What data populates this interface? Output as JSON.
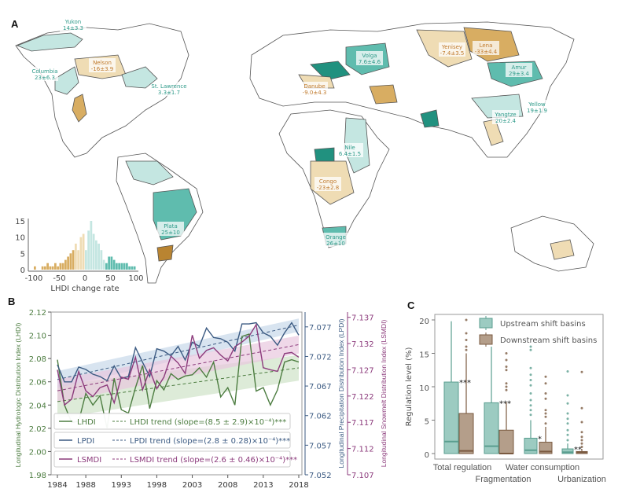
{
  "panels": {
    "a": "A",
    "b": "B",
    "c": "C"
  },
  "colors": {
    "light_teal": "#c4e6e1",
    "teal": "#5fbcae",
    "dark_teal": "#21917f",
    "light_tan": "#efdcb4",
    "tan": "#d8ad62",
    "dark_tan": "#b98431",
    "lhdi": "#4d7d41",
    "lpdi": "#3b5a82",
    "lsmdi": "#8c3b7c",
    "up_box": "#9ccbc1",
    "up_line": "#5a9e8f",
    "down_box": "#b49e8a",
    "down_line": "#7a5a40"
  },
  "map": {
    "basins": [
      {
        "name": "Yukon",
        "value": "14±3.3",
        "sign": "pos"
      },
      {
        "name": "Columbia",
        "value": "23±6.3",
        "sign": "pos"
      },
      {
        "name": "Nelson",
        "value": "-16±3.9",
        "sign": "neg"
      },
      {
        "name": "St. Lawrence",
        "value": "3.3±1.7",
        "sign": "pos"
      },
      {
        "name": "Plata",
        "value": "25±10",
        "sign": "pos"
      },
      {
        "name": "Volga",
        "value": "7.6±4.6",
        "sign": "pos"
      },
      {
        "name": "Yenisey",
        "value": "-7.4±3.5",
        "sign": "neg"
      },
      {
        "name": "Lena",
        "value": "-33±4.4",
        "sign": "neg"
      },
      {
        "name": "Danube",
        "value": "-9.0±4.3",
        "sign": "neg"
      },
      {
        "name": "Amur",
        "value": "29±3.4",
        "sign": "pos"
      },
      {
        "name": "Yangtze",
        "value": "20±2.4",
        "sign": "pos"
      },
      {
        "name": "Yellow",
        "value": "19±1.9",
        "sign": "pos"
      },
      {
        "name": "Nile",
        "value": "6.4±1.5",
        "sign": "pos"
      },
      {
        "name": "Congo",
        "value": "-23±2.8",
        "sign": "neg"
      },
      {
        "name": "Orange",
        "value": "26±10",
        "sign": "pos"
      }
    ]
  },
  "chart_data": [
    {
      "type": "bar",
      "title": "",
      "xlabel": "LHDI change rate",
      "ylabel": "",
      "xlim": [
        -105,
        105
      ],
      "ylim": [
        0,
        16
      ],
      "xticks": [
        "-100",
        "-50",
        "0",
        "50",
        "100"
      ],
      "yticks": [
        "0",
        "5",
        "10",
        "15"
      ],
      "bin_width": 5,
      "bins": [
        -100,
        -95,
        -90,
        -85,
        -80,
        -75,
        -70,
        -65,
        -60,
        -55,
        -50,
        -45,
        -40,
        -35,
        -30,
        -25,
        -20,
        -15,
        -10,
        -5,
        0,
        5,
        10,
        15,
        20,
        25,
        30,
        35,
        40,
        45,
        50,
        55,
        60,
        65,
        70,
        75,
        80,
        85,
        90,
        95
      ],
      "counts": [
        1,
        0,
        0,
        1,
        1,
        2,
        1,
        1,
        2,
        1,
        2,
        2,
        3,
        4,
        5,
        6,
        8,
        6,
        10,
        11,
        6,
        12,
        15,
        11,
        9,
        8,
        6,
        3,
        2,
        4,
        4,
        3,
        2,
        2,
        2,
        2,
        2,
        1,
        1,
        1
      ]
    },
    {
      "type": "line",
      "title": "",
      "xlabel": "",
      "x": [
        1984,
        1985,
        1986,
        1987,
        1988,
        1989,
        1990,
        1991,
        1992,
        1993,
        1994,
        1995,
        1996,
        1997,
        1998,
        1999,
        2000,
        2001,
        2002,
        2003,
        2004,
        2005,
        2006,
        2007,
        2008,
        2009,
        2010,
        2011,
        2012,
        2013,
        2014,
        2015,
        2016,
        2017,
        2018
      ],
      "xticks": [
        "1984",
        "1988",
        "1993",
        "1998",
        "2003",
        "2008",
        "2013",
        "2018"
      ],
      "axes": [
        {
          "label": "Longitudinal Hydrologic Distribution Index (LHDI)",
          "side": "left",
          "ylim": [
            1.98,
            2.12
          ],
          "ticks": [
            "1.98",
            "2.00",
            "2.02",
            "2.04",
            "2.06",
            "2.08",
            "2.10",
            "2.12"
          ]
        },
        {
          "label": "Longitudinal Precipitation Distribution Index (LPDI)",
          "side": "right",
          "ylim": [
            7.052,
            7.0795
          ],
          "ticks": [
            "7.052",
            "7.057",
            "7.062",
            "7.067",
            "7.072",
            "7.077"
          ]
        },
        {
          "label": "Longitudinal Snowmelt Distribution Index (LSMDI)",
          "side": "right-outer",
          "ylim": [
            7.107,
            7.138
          ],
          "ticks": [
            "7.107",
            "7.112",
            "7.117",
            "7.122",
            "7.127",
            "7.132",
            "7.137"
          ]
        }
      ],
      "series": [
        {
          "name": "LHDI",
          "axis": 0,
          "trend_label": "LHDI trend (slope=(8.5 ± 2.9)×10⁻⁴)***",
          "trend": [
            2.043,
            2.072
          ],
          "band": 0.011,
          "values": [
            2.079,
            2.04,
            2.025,
            2.026,
            2.05,
            2.04,
            2.048,
            2.02,
            2.063,
            2.036,
            2.033,
            2.055,
            2.074,
            2.037,
            2.061,
            2.053,
            2.067,
            2.062,
            2.065,
            2.066,
            2.072,
            2.064,
            2.077,
            2.047,
            2.055,
            2.04,
            2.099,
            2.101,
            2.052,
            2.055,
            2.04,
            2.053,
            2.077,
            2.079,
            2.077
          ]
        },
        {
          "name": "LPDI",
          "axis": 1,
          "trend_label": "LPDI trend (slope=(2.8 ± 0.28)×10⁻⁴)***",
          "trend": [
            7.0681,
            7.0773
          ],
          "band": 0.0011,
          "values": [
            7.0706,
            7.0677,
            7.0677,
            7.0702,
            7.0698,
            7.069,
            7.0686,
            7.0679,
            7.0704,
            7.0683,
            7.0686,
            7.0735,
            7.071,
            7.0686,
            7.0733,
            7.0729,
            7.0721,
            7.0737,
            7.0714,
            7.0744,
            7.0737,
            7.0768,
            7.0752,
            7.075,
            7.0744,
            7.0729,
            7.0775,
            7.0775,
            7.0777,
            7.076,
            7.0754,
            7.0739,
            7.076,
            7.0777,
            7.0756
          ]
        },
        {
          "name": "LSMDI",
          "axis": 2,
          "trend_label": "LSMDI trend (slope=(2.6 ± 0.46)×10⁻⁴)***",
          "trend": [
            7.123,
            7.1318
          ],
          "band": 0.0017,
          "values": [
            7.127,
            7.1203,
            7.1214,
            7.1267,
            7.123,
            7.1219,
            7.1236,
            7.1241,
            7.1207,
            7.1256,
            7.1252,
            7.1294,
            7.1232,
            7.127,
            7.1234,
            7.1256,
            7.1296,
            7.1283,
            7.1263,
            7.1336,
            7.1292,
            7.1307,
            7.1312,
            7.1298,
            7.1287,
            7.1314,
            7.1323,
            7.1334,
            7.1356,
            7.1274,
            7.127,
            7.1267,
            7.1301,
            7.1303,
            7.1294
          ]
        }
      ]
    },
    {
      "type": "box",
      "title": "",
      "ylabel": "Regulation level (%)",
      "ylim": [
        -0.5,
        20.5
      ],
      "yticks": [
        "0",
        "5",
        "10",
        "15",
        "20"
      ],
      "categories": [
        "Total regulation",
        "Fragmentation",
        "Water consumption",
        "Urbanization"
      ],
      "significance": [
        "***",
        "***",
        "*",
        "**"
      ],
      "series": [
        {
          "name": "Upstream shift basins",
          "boxes": [
            {
              "q1": 0,
              "median": 1.8,
              "q3": 10.7,
              "whisker": 19.8,
              "outliers": []
            },
            {
              "q1": 0,
              "median": 1.1,
              "q3": 7.6,
              "whisker": 16.0,
              "outliers": []
            },
            {
              "q1": 0,
              "median": 0.5,
              "q3": 2.3,
              "whisker": 5.0,
              "outliers": [
                5.8,
                6.5,
                7.2,
                8.0,
                9.0,
                10.2,
                11.0,
                11.8,
                12.8,
                15.5,
                16.0
              ]
            },
            {
              "q1": 0,
              "median": 0.2,
              "q3": 0.7,
              "whisker": 1.5,
              "outliers": [
                2.0,
                2.8,
                3.5,
                4.5,
                5.2,
                6.0,
                7.5,
                8.7,
                12.3
              ]
            }
          ]
        },
        {
          "name": "Downstream shift basins",
          "boxes": [
            {
              "q1": 0,
              "median": 0.4,
              "q3": 6.0,
              "whisker": 15.0,
              "outliers": [
                15.5,
                16.0,
                17.0,
                18.0,
                20.0
              ]
            },
            {
              "q1": 0,
              "median": 0.0,
              "q3": 3.5,
              "whisker": 7.7,
              "outliers": [
                9.5,
                10.0,
                10.5,
                12.5,
                13.0,
                14.0,
                15.0
              ]
            },
            {
              "q1": 0,
              "median": 0.3,
              "q3": 1.7,
              "whisker": 4.0,
              "outliers": [
                4.5,
                5.5,
                6.0,
                6.5,
                8.2,
                9.0,
                10.5,
                11.5
              ]
            },
            {
              "q1": 0,
              "median": 0.2,
              "q3": 0.3,
              "whisker": 0.7,
              "outliers": [
                1.0,
                1.5,
                2.0,
                2.5,
                3.2,
                4.7,
                6.8,
                12.2
              ]
            }
          ]
        }
      ]
    }
  ]
}
